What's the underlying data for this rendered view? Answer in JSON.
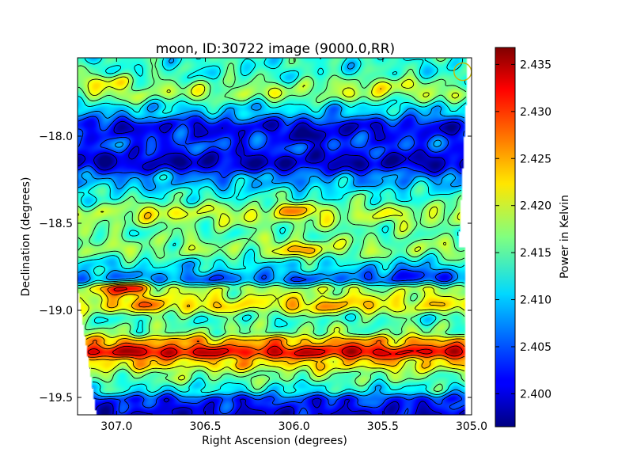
{
  "chart_data": {
    "type": "heatmap",
    "title": "moon, ID:30722 image (9000.0,RR)",
    "xlabel": "Right Ascension (degrees)",
    "ylabel": "Declination (degrees)",
    "colorbar_label": "Power in Kelvin",
    "xlim": [
      307.22,
      305.0
    ],
    "ylim": [
      -19.6,
      -17.55
    ],
    "x_ticks": [
      307.0,
      306.5,
      306.0,
      305.5,
      305.0
    ],
    "x_tick_labels": [
      "307.0",
      "306.5",
      "306.0",
      "305.5",
      "305.0"
    ],
    "y_ticks": [
      -18.0,
      -18.5,
      -19.0,
      -19.5
    ],
    "y_tick_labels": [
      "−18.0",
      "−18.5",
      "−19.0",
      "−19.5"
    ],
    "colorbar_range": [
      2.3965,
      2.4368
    ],
    "colorbar_ticks": [
      2.4,
      2.405,
      2.41,
      2.415,
      2.42,
      2.425,
      2.43,
      2.435
    ],
    "colorbar_tick_labels": [
      "2.400",
      "2.405",
      "2.410",
      "2.415",
      "2.420",
      "2.425",
      "2.430",
      "2.435"
    ],
    "colormap": "jet",
    "contours": true,
    "beam_marker": {
      "ra": 305.05,
      "dec": -17.63,
      "color": "#c8b400"
    },
    "dec_bands": [
      {
        "dec": -17.63,
        "value": 2.413
      },
      {
        "dec": -17.75,
        "value": 2.418
      },
      {
        "dec": -17.85,
        "value": 2.41
      },
      {
        "dec": -17.95,
        "value": 2.401
      },
      {
        "dec": -18.05,
        "value": 2.404
      },
      {
        "dec": -18.15,
        "value": 2.399
      },
      {
        "dec": -18.25,
        "value": 2.408
      },
      {
        "dec": -18.35,
        "value": 2.413
      },
      {
        "dec": -18.45,
        "value": 2.419
      },
      {
        "dec": -18.55,
        "value": 2.415
      },
      {
        "dec": -18.65,
        "value": 2.417
      },
      {
        "dec": -18.75,
        "value": 2.411
      },
      {
        "dec": -18.82,
        "value": 2.406
      },
      {
        "dec": -18.88,
        "value": 2.418
      },
      {
        "dec": -18.97,
        "value": 2.422
      },
      {
        "dec": -19.05,
        "value": 2.414
      },
      {
        "dec": -19.12,
        "value": 2.416
      },
      {
        "dec": -19.18,
        "value": 2.425
      },
      {
        "dec": -19.24,
        "value": 2.432
      },
      {
        "dec": -19.3,
        "value": 2.423
      },
      {
        "dec": -19.38,
        "value": 2.416
      },
      {
        "dec": -19.45,
        "value": 2.412
      },
      {
        "dec": -19.52,
        "value": 2.403
      },
      {
        "dec": -19.6,
        "value": 2.4
      }
    ],
    "features": [
      {
        "ra": 306.95,
        "dec": -18.87,
        "value": 2.432
      },
      {
        "ra": 306.8,
        "dec": -19.24,
        "value": 2.434
      },
      {
        "ra": 305.7,
        "dec": -19.23,
        "value": 2.433
      },
      {
        "ra": 305.9,
        "dec": -18.0,
        "value": 2.398
      },
      {
        "ra": 306.8,
        "dec": -18.97,
        "value": 2.426
      },
      {
        "ra": 306.0,
        "dec": -18.42,
        "value": 2.424
      },
      {
        "ra": 305.95,
        "dec": -18.65,
        "value": 2.425
      },
      {
        "ra": 305.8,
        "dec": -18.98,
        "value": 2.425
      },
      {
        "ra": 305.5,
        "dec": -17.7,
        "value": 2.421
      },
      {
        "ra": 307.05,
        "dec": -17.68,
        "value": 2.421
      },
      {
        "ra": 305.35,
        "dec": -18.78,
        "value": 2.402
      },
      {
        "ra": 306.7,
        "dec": -18.42,
        "value": 2.421
      }
    ]
  }
}
